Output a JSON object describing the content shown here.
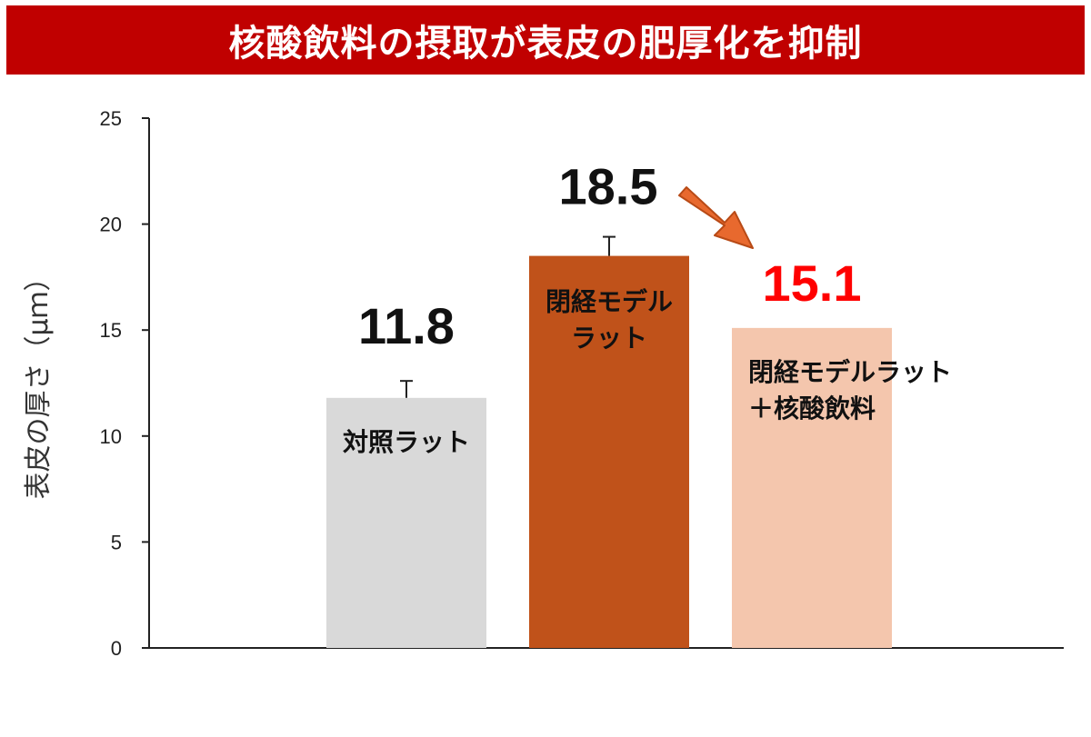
{
  "title": "核酸飲料の摂取が表皮の肥厚化を抑制",
  "colors": {
    "title_bg": "#c00000",
    "arrow": "#e8692e"
  },
  "chart_data": {
    "type": "bar",
    "title": "核酸飲料の摂取が表皮の肥厚化を抑制",
    "ylabel": "表皮の厚さ（μｍ）",
    "ylim": [
      0,
      25
    ],
    "yticks": [
      0,
      5,
      10,
      15,
      20,
      25
    ],
    "grid": false,
    "legend": "none",
    "categories": [
      {
        "label_lines": [
          "対照ラット"
        ],
        "value": 11.8,
        "value_label": "11.8",
        "error": 0.8,
        "color": "#d9d9d9",
        "value_color": "#111111"
      },
      {
        "label_lines": [
          "閉経モデル",
          "ラット"
        ],
        "value": 18.5,
        "value_label": "18.5",
        "error": 0.9,
        "color": "#c0521a",
        "value_color": "#111111"
      },
      {
        "label_lines": [
          "閉経モデルラット",
          "＋核酸飲料"
        ],
        "value": 15.1,
        "value_label": "15.1",
        "error": 0,
        "color": "#f4c6ad",
        "value_color": "#ff0000"
      }
    ],
    "annotations": [
      {
        "type": "arrow",
        "from_category": 1,
        "to_category": 2,
        "description": "decrease"
      }
    ]
  }
}
